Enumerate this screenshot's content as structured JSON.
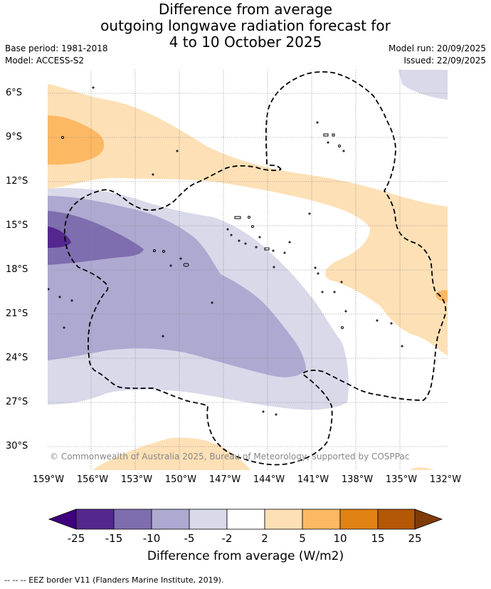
{
  "title": {
    "line1": "Difference from average",
    "line2": "outgoing longwave radiation forecast for",
    "line3": "4 to 10 October 2025"
  },
  "meta": {
    "base_period": "Base period: 1981-2018",
    "model": "Model: ACCESS-S2",
    "model_run": "Model run: 20/09/2025",
    "issued": "Issued: 22/09/2025"
  },
  "axes": {
    "x_labels": [
      "159°W",
      "156°W",
      "153°W",
      "150°W",
      "147°W",
      "144°W",
      "141°W",
      "138°W",
      "135°W",
      "132°W"
    ],
    "y_labels": [
      "6°S",
      "9°S",
      "12°S",
      "15°S",
      "18°S",
      "21°S",
      "24°S",
      "27°S",
      "30°S"
    ]
  },
  "copyright": "© Commonwealth of Australia 2025, Bureau of Meteorology, supported by COSPPac",
  "colorbar": {
    "labels": [
      "-25",
      "-15",
      "-10",
      "-5",
      "-2",
      "2",
      "5",
      "10",
      "15",
      "25"
    ],
    "title": "Difference from average (W/m2)",
    "colors": [
      "#3f007d",
      "#54278f",
      "#7e6daf",
      "#aea9d1",
      "#d9d9ea",
      "#ffffff",
      "#fee0b6",
      "#fdb863",
      "#e08214",
      "#b35806",
      "#7f3b08"
    ]
  },
  "footer": "--  --  -- EEZ border V11 (Flanders Marine Institute, 2019)."
}
